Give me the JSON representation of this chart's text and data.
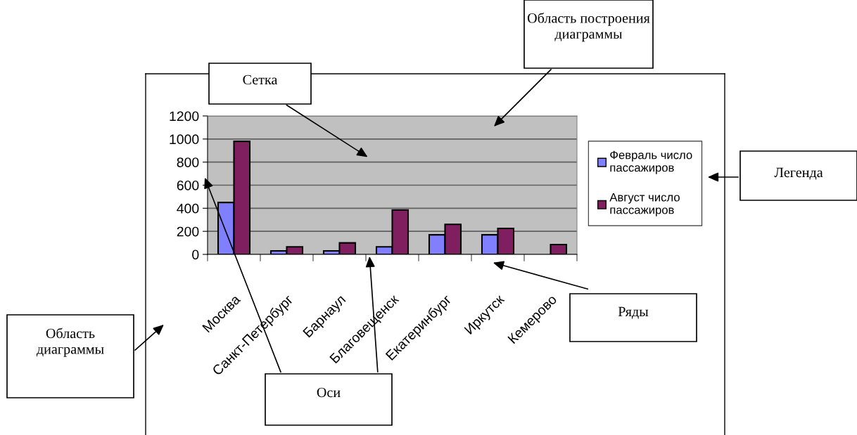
{
  "chart_data": {
    "type": "bar",
    "categories": [
      "Москва",
      "Санкт-Петербург",
      "Барнаул",
      "Благовещенск",
      "Екатеринбург",
      "Иркутск",
      "Кемерово"
    ],
    "series": [
      {
        "name": "Февраль число\nпассажиров",
        "color": "#8080ff",
        "values": [
          450,
          30,
          30,
          65,
          170,
          170,
          null
        ]
      },
      {
        "name": "Август число\nпассажиров",
        "color": "#801f5f",
        "values": [
          980,
          65,
          100,
          385,
          260,
          225,
          85
        ]
      }
    ],
    "ylim": [
      0,
      1200
    ],
    "yticks": [
      0,
      200,
      400,
      600,
      800,
      1000,
      1200
    ],
    "grid": "y",
    "legend": "right",
    "annotations": [
      "Область построения\nдиаграммы",
      "Сетка",
      "Легенда",
      "Ряды",
      "Оси",
      "Область\nдиаграммы"
    ]
  }
}
